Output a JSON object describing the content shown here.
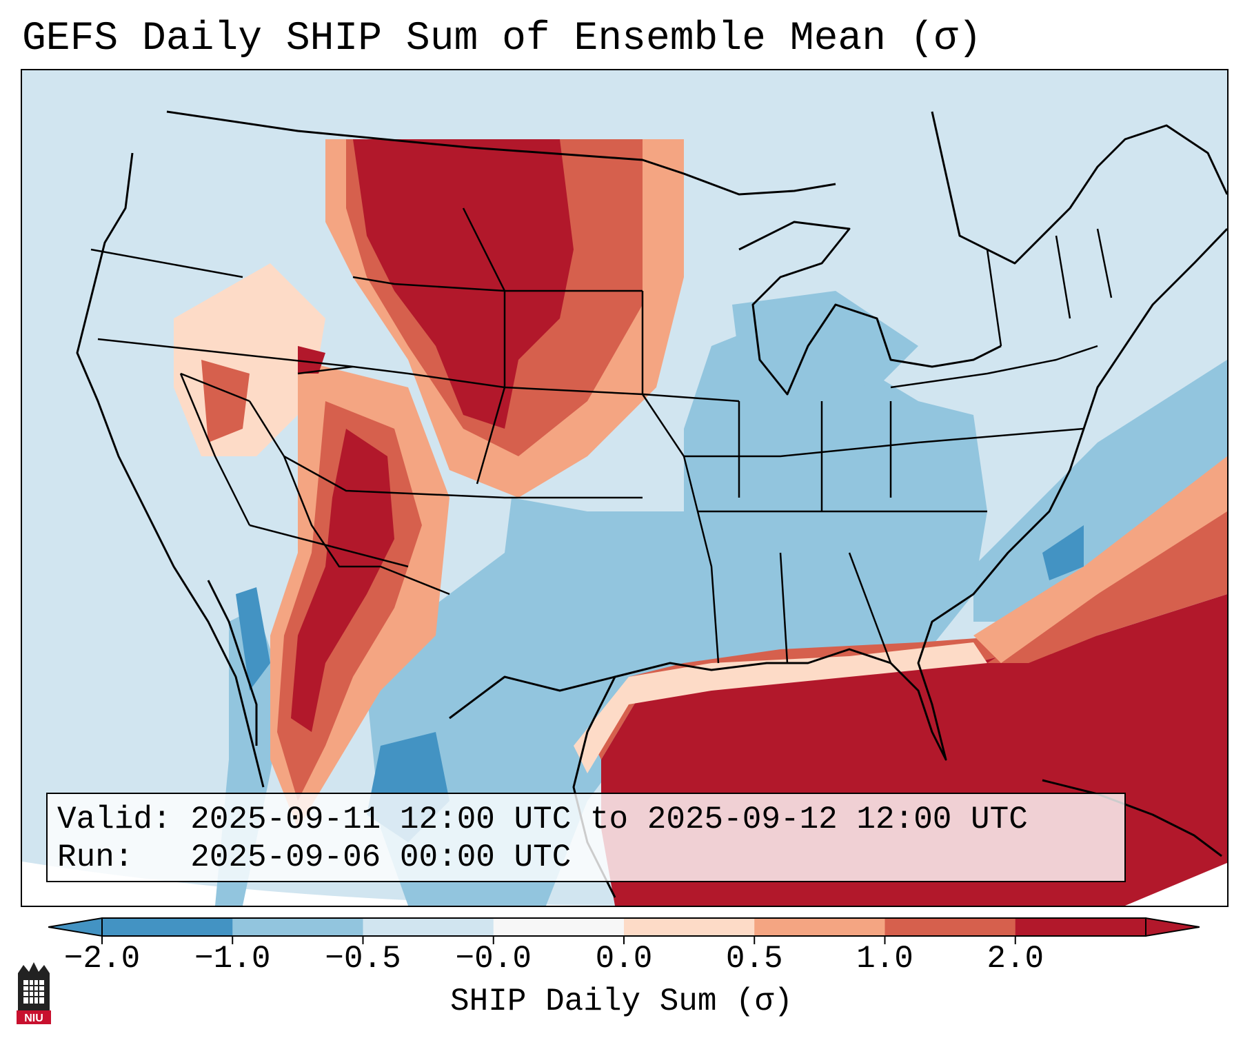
{
  "title": "GEFS Daily SHIP Sum of Ensemble Mean (σ)",
  "info": {
    "valid_line": "Valid: 2025-09-11 12:00 UTC to 2025-09-12 12:00 UTC",
    "run_line": "Run:   2025-09-06 00:00 UTC"
  },
  "colorbar": {
    "label": "SHIP Daily Sum (σ)",
    "ticks": [
      "−2.0",
      "−1.0",
      "−0.5",
      "−0.0",
      "0.0",
      "0.5",
      "1.0",
      "2.0"
    ],
    "colors": [
      "#4393c3",
      "#92c5de",
      "#d1e5f0",
      "#f7f7f7",
      "#fddbc7",
      "#f4a582",
      "#d6604d",
      "#b2182b"
    ]
  },
  "legend_colors": {
    "strong_positive": "#b2182b",
    "positive": "#d6604d",
    "weak_positive": "#f4a582",
    "slight_positive": "#fddbc7",
    "slight_negative": "#d1e5f0",
    "negative": "#92c5de",
    "strong_negative": "#4393c3"
  },
  "logo": {
    "text": "NIU",
    "icon": "niu-castle-logo-icon"
  }
}
